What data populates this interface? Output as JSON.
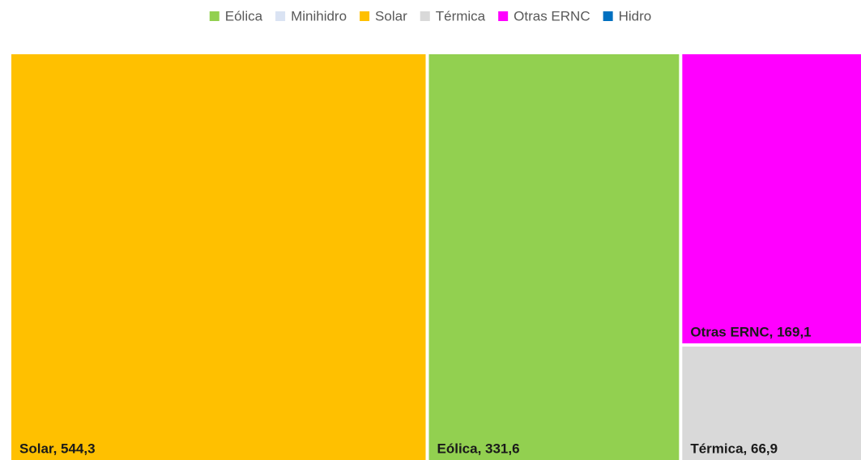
{
  "chart_data": {
    "type": "treemap",
    "categories": [
      "Eólica",
      "Minihidro",
      "Solar",
      "Térmica",
      "Otras ERNC",
      "Hidro"
    ],
    "values": [
      331.6,
      null,
      544.3,
      66.9,
      169.1,
      null
    ],
    "value_labels": [
      "Eólica, 331,6",
      null,
      "Solar, 544,3",
      "Térmica, 66,9",
      "Otras ERNC, 169,1",
      null
    ],
    "colors": [
      "#92d050",
      "#dae3f3",
      "#ffc000",
      "#d9d9d9",
      "#ff00ff",
      "#0070c0"
    ],
    "legend": "top"
  }
}
